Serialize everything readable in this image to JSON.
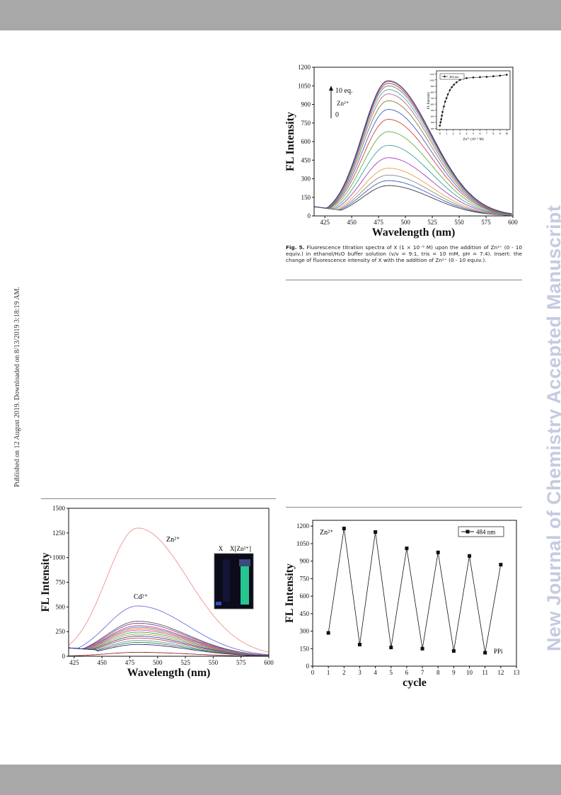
{
  "watermark": "New Journal of Chemistry Accepted Manuscript",
  "published_note": "Published on 12 August 2019. Downloaded on 8/13/2019 3:18:19 AM.",
  "caption": {
    "label": "Fig. 5.",
    "text": "Fluorescence titration spectra of X (1 × 10⁻⁵ M) upon the addition of Zn²⁺ (0 - 10 equiv.) in ethanol/H₂O buffer solution (v/v = 9:1, tris = 10 mM, pH = 7.4). Insert: the change of fluorescence intensity of X with the addition of Zn²⁺ (0 - 10 equiv.)."
  },
  "chart_data": [
    {
      "id": "fig5_titration",
      "type": "line",
      "xlabel": "Wavelength (nm)",
      "ylabel": "FL Intensity",
      "xlim": [
        415,
        600
      ],
      "ylim": [
        0,
        1200
      ],
      "xticks": [
        425,
        450,
        475,
        500,
        525,
        550,
        575,
        600
      ],
      "yticks": [
        0,
        150,
        300,
        450,
        600,
        750,
        900,
        1050,
        1200
      ],
      "annotations": [
        "10 eq.",
        "Zn²⁺",
        "0"
      ],
      "peak_wavelength": 484,
      "curve_peaks": [
        245,
        285,
        330,
        385,
        470,
        570,
        680,
        780,
        860,
        930,
        985,
        1020,
        1050,
        1070,
        1085,
        1092
      ],
      "curve_colors": [
        "#3a3a3a",
        "#3a5fc0",
        "#888888",
        "#e8a040",
        "#a040c0",
        "#40a0a0",
        "#60b040",
        "#d04040",
        "#4060d0",
        "#808030",
        "#c06080",
        "#40b0c0",
        "#a07040",
        "#6040a0",
        "#d06030",
        "#303080"
      ],
      "inset": {
        "legend": "484 nm",
        "xlabel": "Zn²⁺ (10⁻⁵ M)",
        "ylabel": "FL Intensity",
        "xticks": [
          0,
          1,
          2,
          3,
          4,
          5,
          6,
          7,
          8,
          9,
          10
        ],
        "yticks": [
          200,
          300,
          400,
          500,
          600,
          700,
          800,
          900,
          1000,
          1100
        ],
        "xlim": [
          -0.5,
          10.5
        ],
        "ylim": [
          180,
          1150
        ],
        "x": [
          0,
          0.1,
          0.2,
          0.3,
          0.4,
          0.6,
          0.8,
          1.0,
          1.2,
          1.5,
          1.8,
          2.1,
          2.5,
          3.0,
          3.5,
          4.0,
          5.0,
          6.0,
          7.0,
          8.0,
          9.0,
          10.0
        ],
        "y": [
          245,
          300,
          350,
          410,
          470,
          560,
          640,
          700,
          760,
          830,
          880,
          920,
          960,
          1000,
          1020,
          1030,
          1040,
          1045,
          1050,
          1060,
          1070,
          1085
        ]
      }
    },
    {
      "id": "fig_selectivity",
      "type": "line",
      "xlabel": "Wavelength (nm)",
      "ylabel": "FL Intensity",
      "xlim": [
        420,
        600
      ],
      "ylim": [
        0,
        1500
      ],
      "xticks": [
        425,
        450,
        475,
        500,
        525,
        550,
        575,
        600
      ],
      "yticks": [
        0,
        250,
        500,
        750,
        1000,
        1250,
        1500
      ],
      "annotations": [
        "Zn²⁺",
        "Cd²⁺"
      ],
      "photo_labels": [
        "X",
        "X[Zn²⁺]"
      ],
      "curves": [
        {
          "peak": 1300,
          "color": "#f09090"
        },
        {
          "peak": 510,
          "color": "#7070e0"
        },
        {
          "peak": 355,
          "color": "#606060"
        },
        {
          "peak": 335,
          "color": "#8040a0"
        },
        {
          "peak": 310,
          "color": "#e04060"
        },
        {
          "peak": 295,
          "color": "#4080e0"
        },
        {
          "peak": 280,
          "color": "#e08040"
        },
        {
          "peak": 265,
          "color": "#e050a0"
        },
        {
          "peak": 245,
          "color": "#40b040"
        },
        {
          "peak": 225,
          "color": "#a0a040"
        },
        {
          "peak": 205,
          "color": "#4040c0"
        },
        {
          "peak": 185,
          "color": "#c04040"
        },
        {
          "peak": 160,
          "color": "#50a0a0"
        },
        {
          "peak": 140,
          "color": "#408040"
        },
        {
          "peak": 120,
          "color": "#2a2a80"
        }
      ],
      "baseline_curve": {
        "peak": 40,
        "color": "#a02020"
      }
    },
    {
      "id": "fig_reversibility",
      "type": "line",
      "xlabel": "cycle",
      "ylabel": "FL Intensity",
      "xlim": [
        0,
        13
      ],
      "ylim": [
        0,
        1250
      ],
      "xticks": [
        0,
        1,
        2,
        3,
        4,
        5,
        6,
        7,
        8,
        9,
        10,
        11,
        12,
        13
      ],
      "yticks": [
        0,
        150,
        300,
        450,
        600,
        750,
        900,
        1050,
        1200
      ],
      "legend": "484 nm",
      "annotations": [
        "Zn²⁺",
        "PPi"
      ],
      "x": [
        1,
        2,
        3,
        4,
        5,
        6,
        7,
        8,
        9,
        10,
        11,
        12
      ],
      "y": [
        285,
        1180,
        185,
        1150,
        160,
        1010,
        150,
        975,
        130,
        945,
        115,
        870
      ]
    }
  ]
}
